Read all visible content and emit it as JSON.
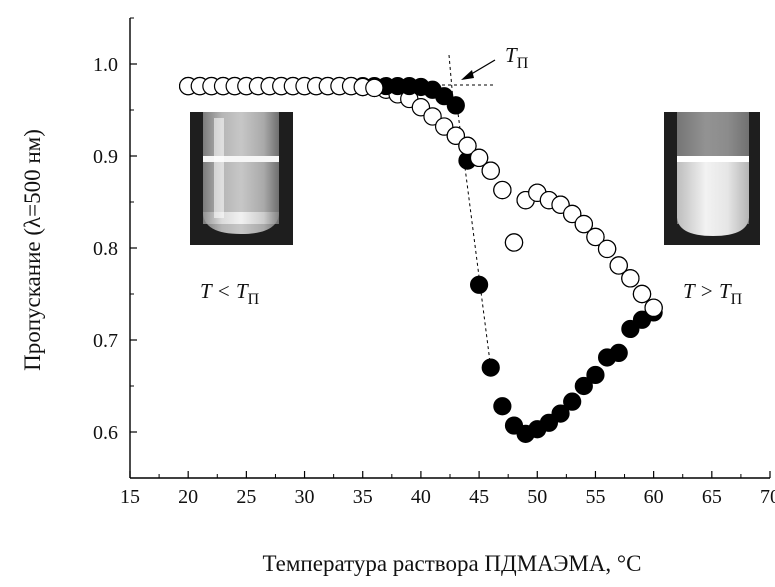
{
  "chart_data": {
    "type": "scatter",
    "xlabel": "Температура раствора ПДМАЭМА, °C",
    "ylabel": "Пропускание (λ=500 нм)",
    "xlim": [
      15,
      70
    ],
    "ylim": [
      0.55,
      1.05
    ],
    "xticks": [
      "15",
      "20",
      "25",
      "30",
      "35",
      "40",
      "45",
      "50",
      "55",
      "60",
      "65",
      "70"
    ],
    "yticks": [
      "0.6",
      "0.7",
      "0.8",
      "0.9",
      "1.0"
    ],
    "grid": false,
    "series": [
      {
        "marker": "filled-circle",
        "color": "#000000",
        "x": [
          20,
          21,
          22,
          23,
          24,
          25,
          26,
          27,
          28,
          29,
          30,
          31,
          32,
          33,
          34,
          35,
          36,
          37,
          38,
          39,
          40,
          41,
          42,
          43,
          44,
          45,
          46,
          47,
          48,
          49,
          50,
          51,
          52,
          53,
          54,
          55,
          56,
          57,
          58,
          59,
          60
        ],
        "y": [
          0.976,
          0.976,
          0.976,
          0.976,
          0.976,
          0.976,
          0.976,
          0.976,
          0.976,
          0.976,
          0.976,
          0.976,
          0.976,
          0.976,
          0.976,
          0.976,
          0.976,
          0.976,
          0.976,
          0.976,
          0.975,
          0.972,
          0.965,
          0.955,
          0.895,
          0.76,
          0.67,
          0.628,
          0.607,
          0.598,
          0.603,
          0.61,
          0.62,
          0.633,
          0.65,
          0.662,
          0.681,
          0.686,
          0.712,
          0.722,
          0.73
        ]
      },
      {
        "marker": "open-circle",
        "color": "#000000",
        "x": [
          20,
          21,
          22,
          23,
          24,
          25,
          26,
          27,
          28,
          29,
          30,
          31,
          32,
          33,
          34,
          35,
          36,
          37,
          38,
          39,
          40,
          41,
          42,
          43,
          44,
          45,
          46,
          47,
          48,
          49,
          50,
          51,
          52,
          53,
          54,
          55,
          56,
          57,
          58,
          59,
          60
        ],
        "y": [
          0.976,
          0.976,
          0.976,
          0.976,
          0.976,
          0.976,
          0.976,
          0.976,
          0.976,
          0.976,
          0.976,
          0.976,
          0.976,
          0.976,
          0.976,
          0.975,
          0.974,
          0.972,
          0.967,
          0.962,
          0.953,
          0.943,
          0.932,
          0.922,
          0.911,
          0.898,
          0.884,
          0.863,
          0.806,
          0.852,
          0.86,
          0.852,
          0.847,
          0.837,
          0.826,
          0.812,
          0.799,
          0.781,
          0.767,
          0.75,
          0.735
        ]
      }
    ],
    "annotations": {
      "transition_label": "T",
      "transition_sub": "П",
      "left_label_pre": "T < T",
      "left_label_sub": "П",
      "right_label_pre": "T > T",
      "right_label_sub": "П"
    },
    "guide_line": {
      "x": [
        43,
        46
      ],
      "y": [
        0.965,
        0.67
      ]
    },
    "insets": [
      {
        "position": "upper-left",
        "state": "clear solution"
      },
      {
        "position": "upper-right",
        "state": "turbid solution"
      }
    ]
  }
}
